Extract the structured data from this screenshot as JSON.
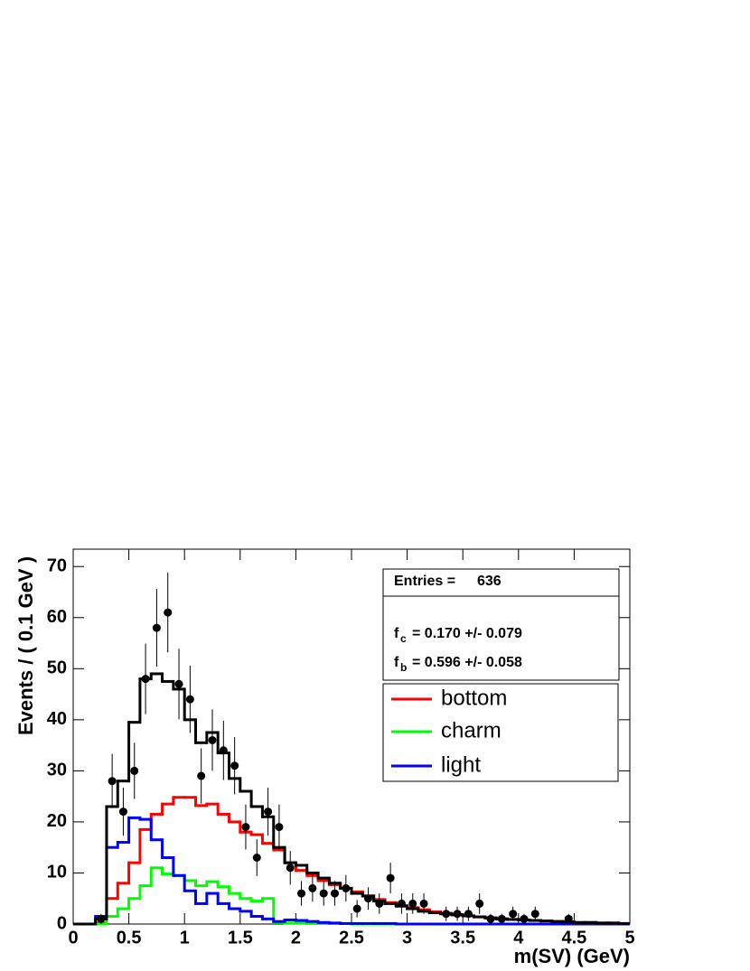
{
  "chart_data": {
    "type": "histogram",
    "y_label": "Events / ( 0.1 GeV )",
    "x_label": "m(SV) (GeV)",
    "bins": [
      0,
      0.1,
      0.2,
      0.3,
      0.4,
      0.5,
      0.6,
      0.7,
      0.8,
      0.9,
      1,
      1.1,
      1.2,
      1.3,
      1.4,
      1.5,
      1.6,
      1.7,
      1.8,
      1.9,
      2,
      2.1,
      2.2,
      2.3,
      2.4,
      2.5,
      2.6,
      2.7,
      2.8,
      2.9,
      3,
      3.1,
      3.2,
      3.3,
      3.4,
      3.5,
      3.6,
      3.7,
      3.8,
      3.9,
      4,
      4.1,
      4.2,
      4.3,
      4.4,
      4.5,
      4.6,
      4.7,
      4.8,
      4.9,
      5
    ],
    "xlim": [
      0,
      5
    ],
    "ylim": [
      0,
      73.4
    ],
    "xticks": [
      0,
      0.5,
      1,
      1.5,
      2,
      2.5,
      3,
      3.5,
      4,
      4.5,
      5
    ],
    "yticks": [
      0,
      10,
      20,
      30,
      40,
      50,
      60,
      70
    ],
    "data": {
      "color": "#000000",
      "values": [
        null,
        null,
        1,
        28,
        22,
        30,
        48,
        58,
        61,
        47,
        44,
        29,
        36,
        34,
        31,
        19,
        13,
        22,
        19,
        11,
        6,
        7,
        6,
        6,
        7,
        3,
        5,
        4,
        9,
        4,
        4,
        4,
        null,
        2,
        2,
        2,
        4,
        1,
        1,
        2,
        1,
        2,
        null,
        null,
        1,
        null,
        null,
        null,
        null,
        null
      ],
      "errors": [
        null,
        null,
        1,
        5.3,
        4.7,
        5.5,
        6.9,
        7.6,
        7.8,
        6.9,
        6.6,
        5.4,
        6,
        5.8,
        5.6,
        4.4,
        3.6,
        4.7,
        4.4,
        3.3,
        2.4,
        2.6,
        2.4,
        2.4,
        2.6,
        1.7,
        2.2,
        2,
        3,
        2,
        2,
        2,
        null,
        1.4,
        1.4,
        1.4,
        2,
        1,
        1,
        1.4,
        1,
        1.4,
        null,
        null,
        1,
        null,
        null,
        null,
        null,
        null
      ]
    },
    "total": {
      "color": "#000000",
      "values": [
        0,
        0,
        1,
        23,
        28,
        39.5,
        48,
        49,
        47.5,
        46,
        40,
        35.5,
        37.5,
        33.5,
        28.5,
        26,
        23,
        21,
        15,
        12,
        11.5,
        10,
        9,
        8,
        7,
        6,
        5.5,
        4.5,
        4,
        3.5,
        3,
        2.5,
        2.2,
        2,
        1.8,
        1.6,
        1.4,
        1.2,
        1,
        0.9,
        0.8,
        0.7,
        0.6,
        0.5,
        0.4,
        0.3,
        0.3,
        0.2,
        0.2,
        0.1
      ]
    },
    "series": [
      {
        "name": "bottom",
        "color": "#ff0000",
        "values": [
          0,
          0,
          0.2,
          5,
          8,
          12,
          18.5,
          21.5,
          23.5,
          24.8,
          24.8,
          23.2,
          23.5,
          21.5,
          20,
          18,
          17.5,
          15.8,
          14.5,
          12,
          10.5,
          9.5,
          8.5,
          7.7,
          7,
          6.3,
          5.5,
          4.8,
          4.2,
          3.6,
          3.2,
          2.8,
          2.4,
          2.1,
          1.8,
          1.6,
          1.4,
          1.2,
          1,
          0.9,
          0.8,
          0.7,
          0.6,
          0.5,
          0.4,
          0.3,
          0.3,
          0.2,
          0.2,
          0.1
        ]
      },
      {
        "name": "charm",
        "color": "#00ff00",
        "values": [
          0,
          0,
          0,
          1.5,
          3,
          5,
          7.5,
          11,
          9.8,
          9.5,
          8.5,
          7.5,
          8.3,
          7.3,
          6,
          5,
          4.5,
          5,
          0.3,
          0.2,
          0.2,
          0.1,
          0.1,
          0.1,
          0.1,
          0,
          0,
          0,
          0,
          0,
          0,
          0,
          0,
          0,
          0,
          0,
          0,
          0,
          0,
          0,
          0,
          0,
          0,
          0,
          0,
          0,
          0,
          0,
          0,
          0
        ]
      },
      {
        "name": "light",
        "color": "#0000ff",
        "values": [
          0,
          0,
          1.5,
          15,
          16,
          20.8,
          20.5,
          16.5,
          13,
          9.5,
          6.5,
          4,
          6,
          4,
          3,
          2.5,
          1.5,
          1,
          0.5,
          0.8,
          0.7,
          0.5,
          0.3,
          0.2,
          0.1,
          0.1,
          0.1,
          0.1,
          0.1,
          0,
          0,
          0,
          0,
          0,
          0,
          0,
          0,
          0,
          0,
          0,
          0,
          0,
          0,
          0,
          0,
          0,
          0,
          0,
          0,
          0
        ]
      }
    ],
    "stats": {
      "entries_label": "Entries =",
      "entries": 636,
      "lines": [
        {
          "symbol": "f",
          "sub": "c",
          "text": "=  0.170 +/- 0.079"
        },
        {
          "symbol": "f",
          "sub": "b",
          "text": "=  0.596 +/- 0.058"
        }
      ]
    },
    "legend": "upper right"
  }
}
